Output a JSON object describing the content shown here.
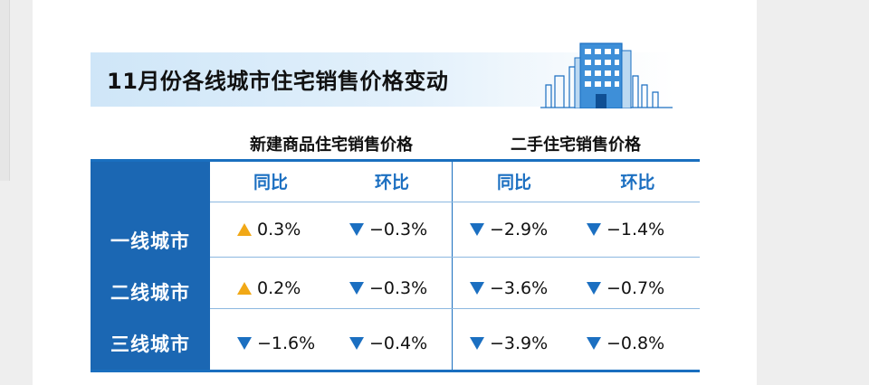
{
  "title": "11月份各线城市住宅销售价格变动",
  "groups": {
    "new_homes": "新建商品住宅销售价格",
    "used_homes": "二手住宅销售价格"
  },
  "sub_headers": {
    "new_yoy": "同比",
    "new_mom": "环比",
    "used_yoy": "同比",
    "used_mom": "环比"
  },
  "rows": [
    {
      "city_tier": "一线城市",
      "new_yoy": {
        "value": "0.3%",
        "direction": "up"
      },
      "new_mom": {
        "value": "−0.3%",
        "direction": "down"
      },
      "used_yoy": {
        "value": "−2.9%",
        "direction": "down"
      },
      "used_mom": {
        "value": "−1.4%",
        "direction": "down"
      }
    },
    {
      "city_tier": "二线城市",
      "new_yoy": {
        "value": "0.2%",
        "direction": "up"
      },
      "new_mom": {
        "value": "−0.3%",
        "direction": "down"
      },
      "used_yoy": {
        "value": "−3.6%",
        "direction": "down"
      },
      "used_mom": {
        "value": "−0.7%",
        "direction": "down"
      }
    },
    {
      "city_tier": "三线城市",
      "new_yoy": {
        "value": "−1.6%",
        "direction": "down"
      },
      "new_mom": {
        "value": "−0.4%",
        "direction": "down"
      },
      "used_yoy": {
        "value": "−3.9%",
        "direction": "down"
      },
      "used_mom": {
        "value": "−0.8%",
        "direction": "down"
      }
    }
  ],
  "colors": {
    "header_blue": "#1b67b3",
    "accent_blue": "#1b6fc1",
    "up_orange": "#f1a816"
  }
}
